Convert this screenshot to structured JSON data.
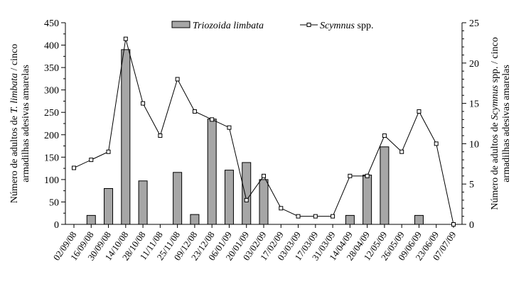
{
  "chart_data": {
    "type": "bar+line",
    "categories": [
      "02/09/08",
      "16/09/08",
      "30/09/08",
      "14/10/08",
      "28/10/08",
      "11/11/08",
      "25/11/08",
      "09/12/08",
      "23/12/08",
      "06/01/09",
      "20/01/09",
      "03/02/09",
      "17/02/09",
      "03/03/09",
      "17/03/09",
      "31/03/09",
      "14/04/09",
      "28/04/09",
      "12/05/09",
      "26/05/09",
      "09/06/09",
      "23/06/09",
      "07/07/09"
    ],
    "series": [
      {
        "name": "Triozoida limbata",
        "type": "bar",
        "axis": "left",
        "color": "#a6a6a6",
        "values": [
          0,
          20,
          80,
          390,
          97,
          0,
          116,
          22,
          235,
          121,
          138,
          100,
          0,
          0,
          0,
          0,
          20,
          110,
          173,
          0,
          20,
          0,
          0
        ]
      },
      {
        "name": "Scymnus spp.",
        "name_italic": "Scymnus",
        "name_suffix": " spp.",
        "type": "line",
        "axis": "right",
        "color": "#000000",
        "values": [
          7,
          8,
          9,
          23,
          15,
          11,
          18,
          14,
          13,
          12,
          3,
          6,
          2,
          1,
          1,
          1,
          6,
          6,
          11,
          9,
          14,
          10,
          0
        ]
      }
    ],
    "ylabel_left": [
      "Número de adultos de ",
      "T. limbata",
      " / cinco",
      "armadilhas adesivas amarelas"
    ],
    "ylabel_right": [
      "Número de adultos de ",
      "Scymnus",
      " spp. / cinco",
      "armadilhas adesivas amarelas"
    ],
    "ylim_left": [
      0,
      450
    ],
    "yticks_left": [
      0,
      50,
      100,
      150,
      200,
      250,
      300,
      350,
      400,
      450
    ],
    "ylim_right": [
      0,
      25
    ],
    "yticks_right": [
      0,
      5,
      10,
      15,
      20,
      25
    ],
    "legend": "top-center",
    "grid": false
  }
}
